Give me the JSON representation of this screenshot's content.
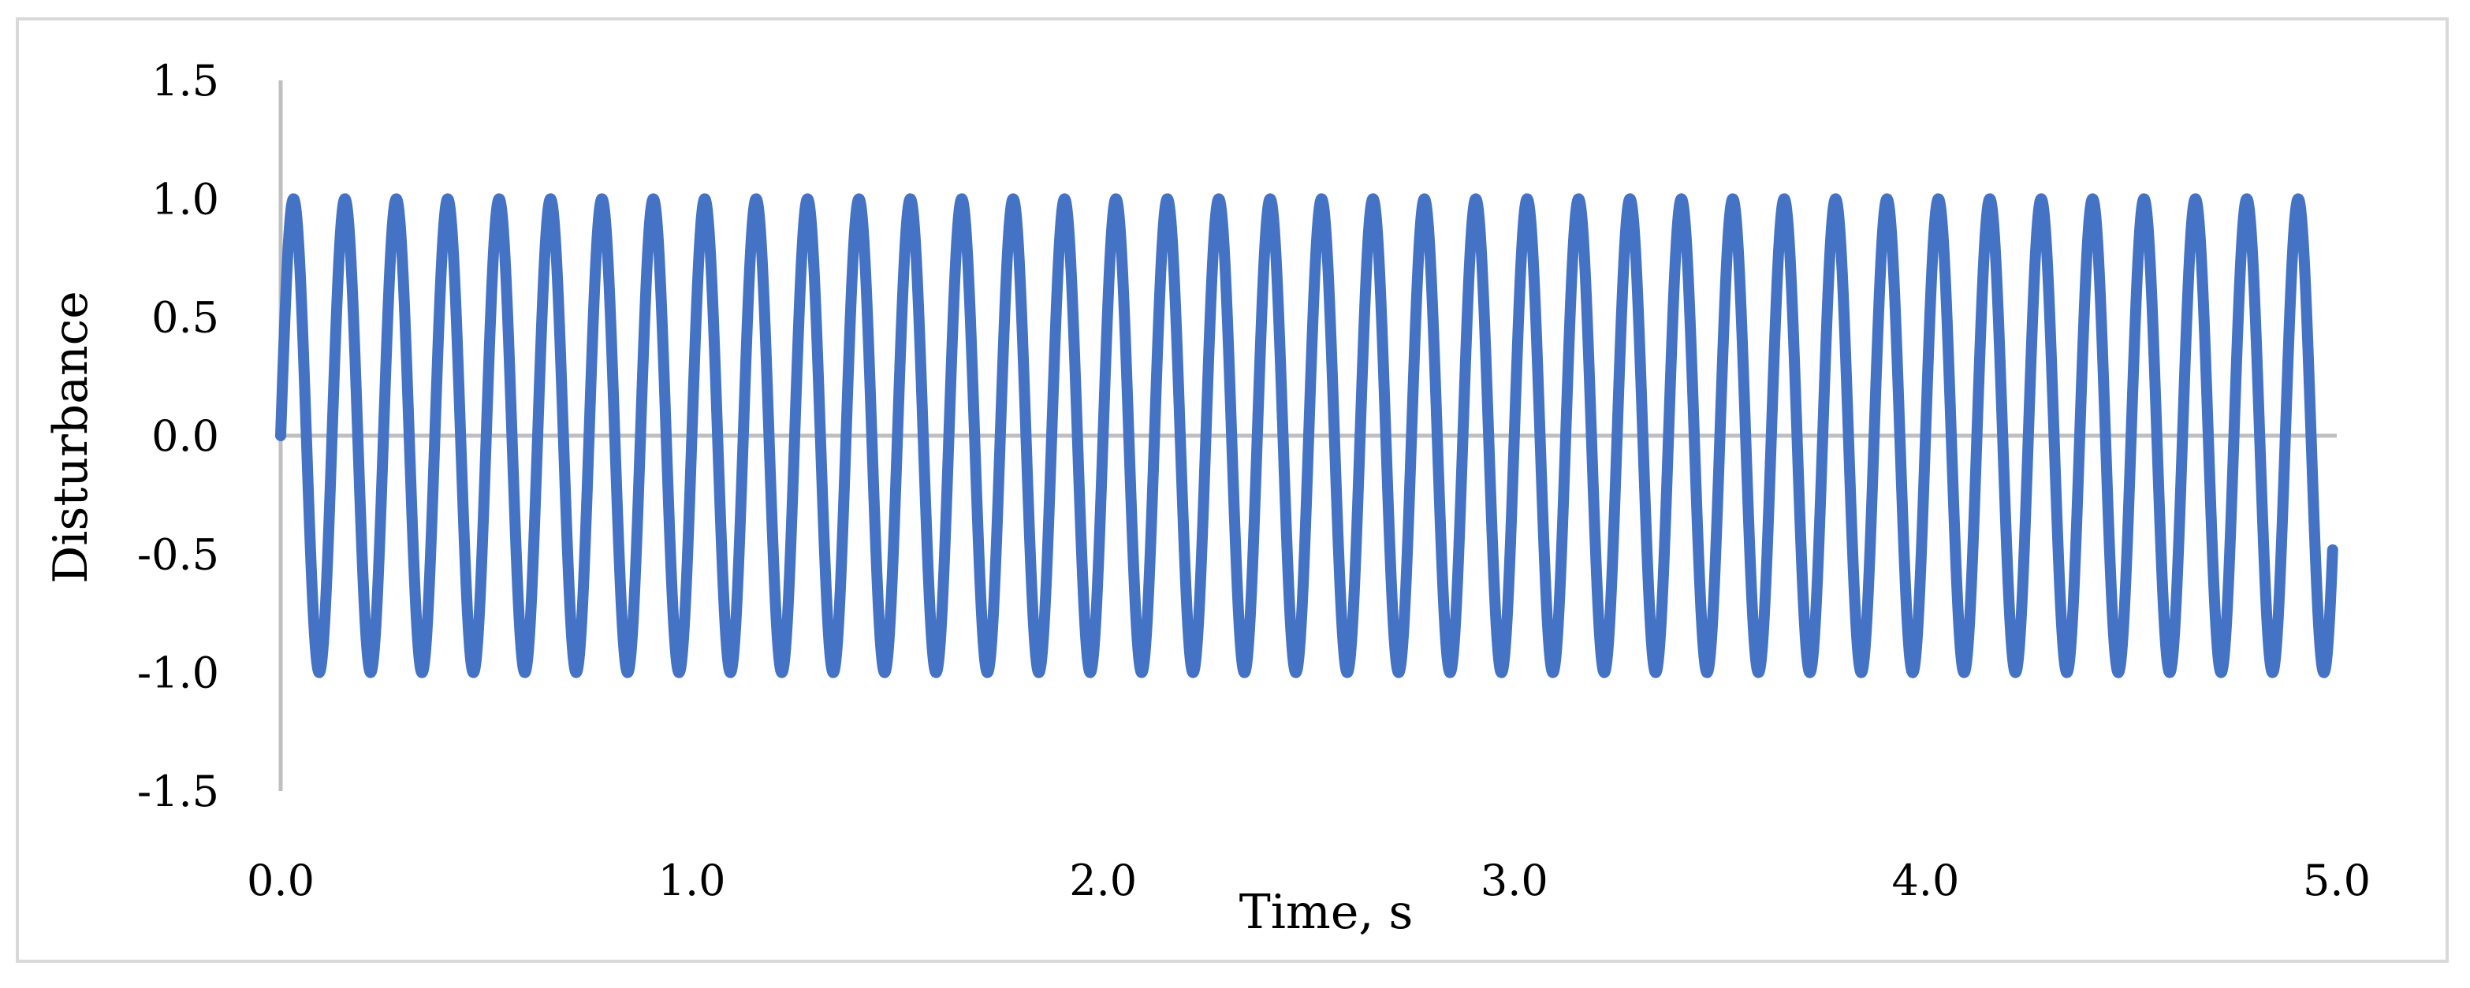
{
  "chart_data": {
    "type": "line",
    "title": "",
    "xlabel": "Time, s",
    "ylabel": "Disturbance",
    "xlim": [
      0,
      5
    ],
    "ylim": [
      -1.5,
      1.5
    ],
    "x_ticks": [
      0.0,
      1.0,
      2.0,
      3.0,
      4.0,
      5.0
    ],
    "x_tick_labels": [
      "0.0",
      "1.0",
      "2.0",
      "3.0",
      "4.0",
      "5.0"
    ],
    "y_ticks": [
      1.5,
      1.0,
      0.5,
      0.0,
      -0.5,
      -1.0,
      -1.5
    ],
    "y_tick_labels": [
      "1.5",
      "1.0",
      "0.5",
      "0.0",
      "-0.5",
      "-1.0",
      "-1.5"
    ],
    "grid": false,
    "legend": "none",
    "series": [
      {
        "function": "sin",
        "amplitude": 1.0,
        "frequency_hz": 8,
        "x_start": 0,
        "x_end": 4.99,
        "color": "#4472c4"
      }
    ],
    "axis_color": "#bfbfbf",
    "frame_color": "#d9d9d9"
  }
}
